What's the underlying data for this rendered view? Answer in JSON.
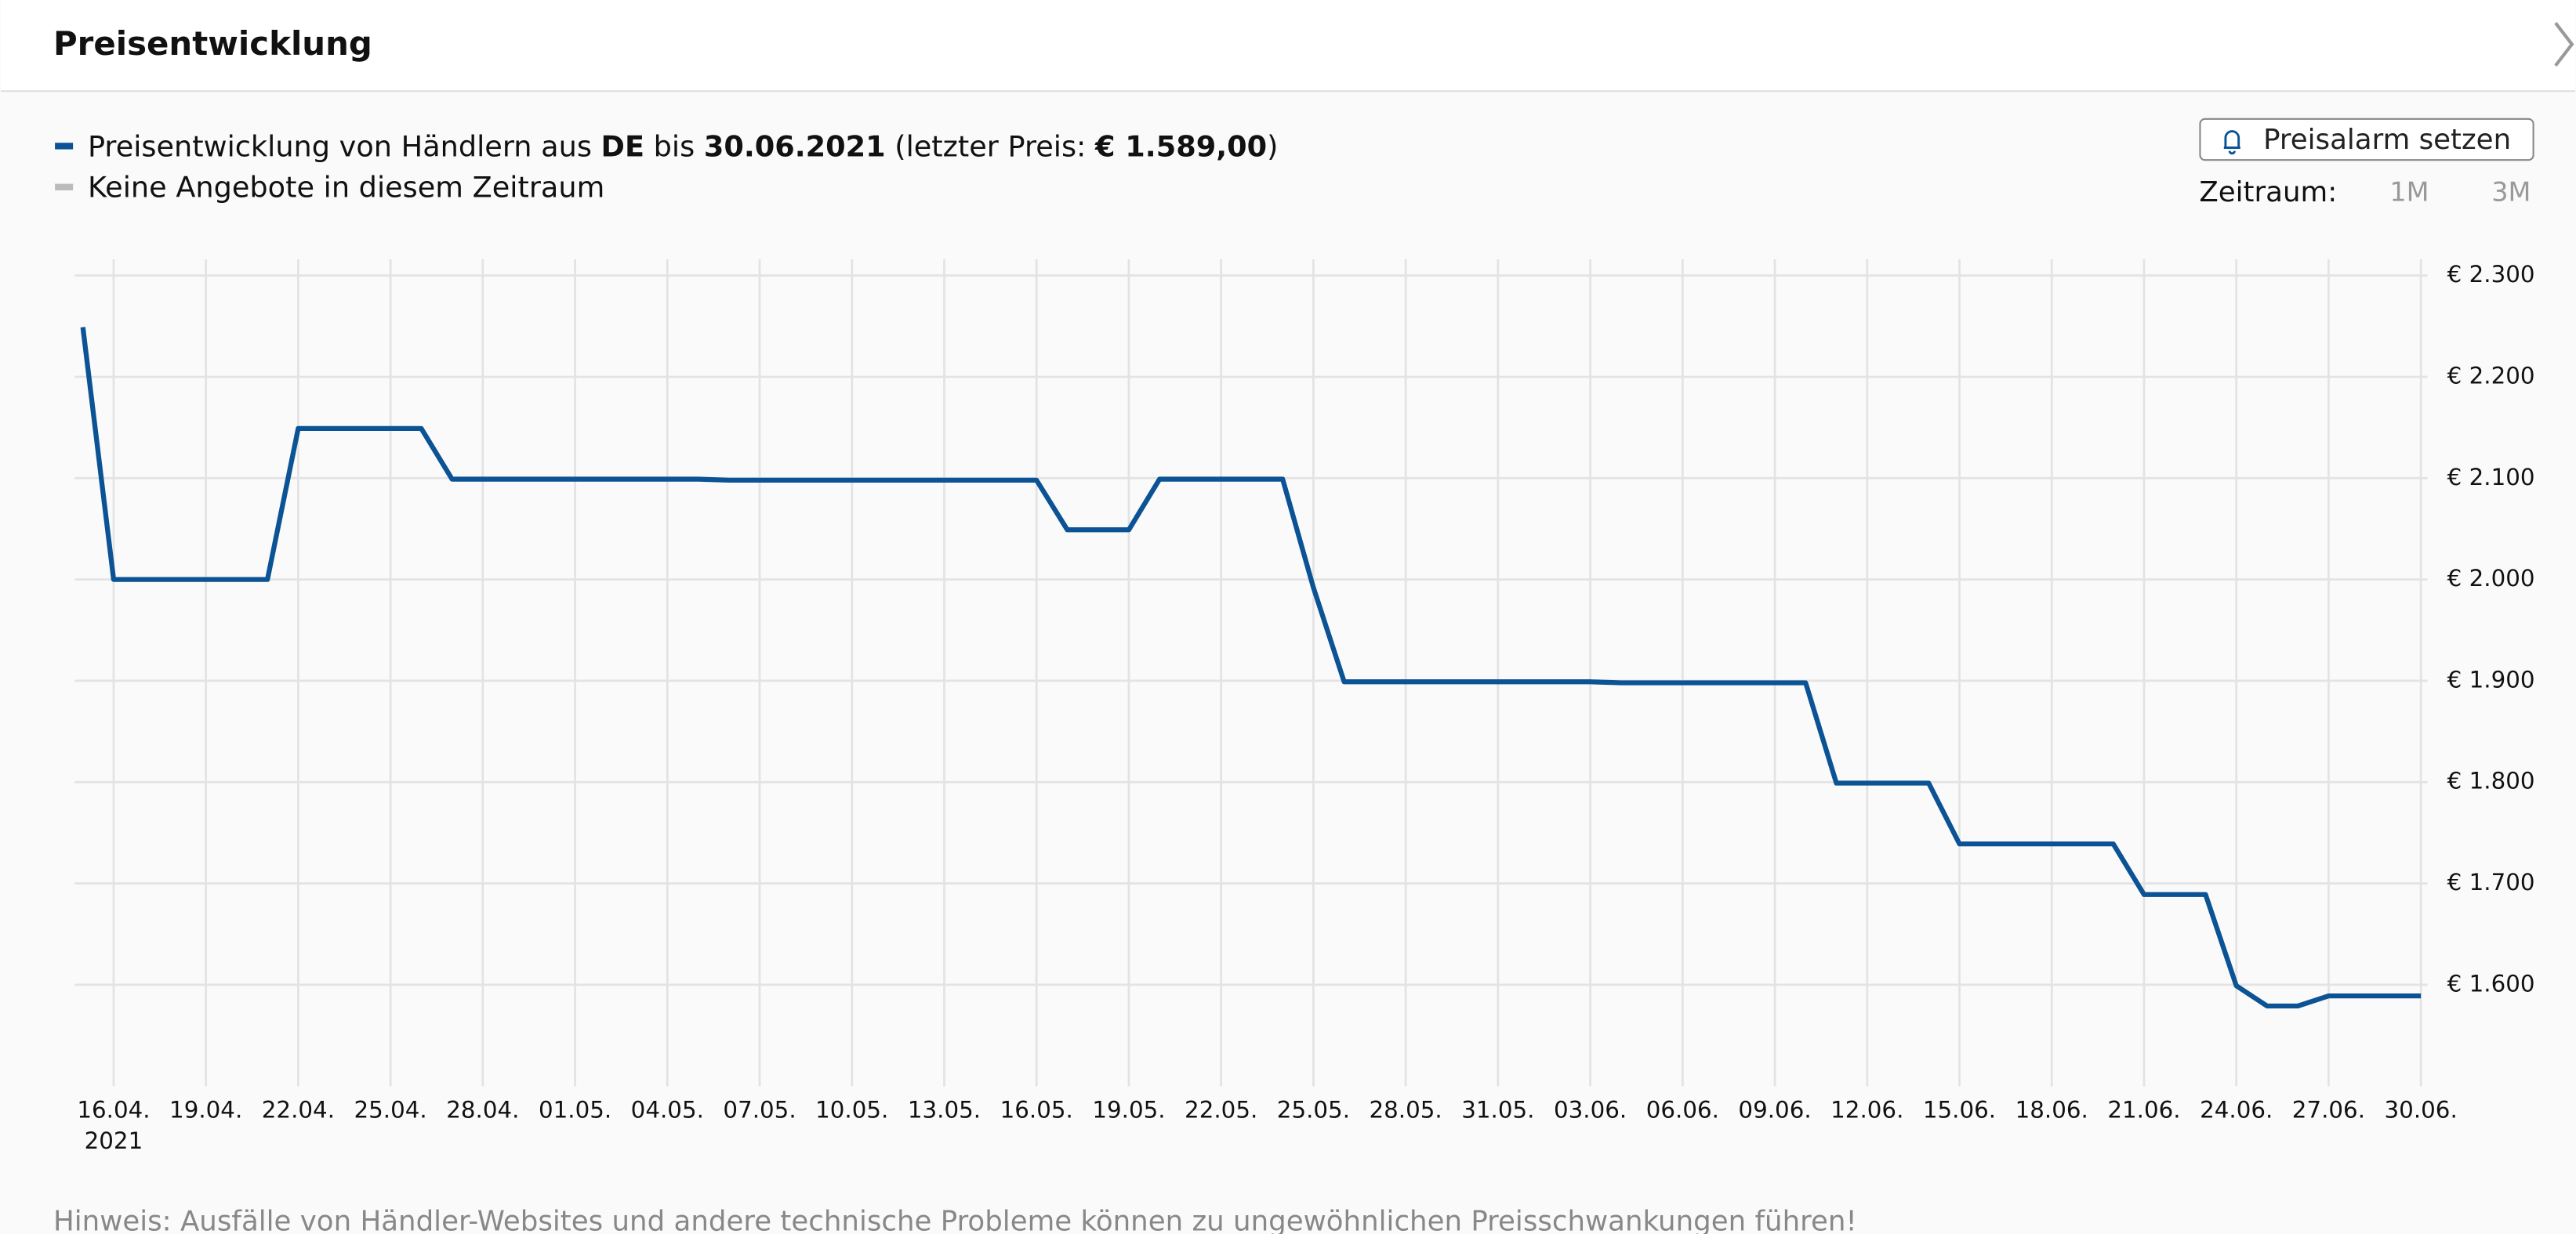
{
  "header": {
    "title": "Preisentwicklung"
  },
  "controls": {
    "alarm_button": "Preisalarm setzen",
    "period_label": "Zeitraum:",
    "periods": [
      "1M",
      "3M"
    ]
  },
  "chart_data": {
    "type": "line",
    "categories": [
      null,
      "16.04.",
      null,
      null,
      "19.04.",
      null,
      null,
      "22.04.",
      null,
      null,
      "25.04.",
      null,
      null,
      "28.04.",
      null,
      null,
      "01.05.",
      null,
      null,
      "04.05.",
      null,
      null,
      "07.05.",
      null,
      null,
      "10.05.",
      null,
      null,
      "13.05.",
      null,
      null,
      "16.05.",
      null,
      null,
      "19.05.",
      null,
      null,
      "22.05.",
      null,
      null,
      "25.05.",
      null,
      null,
      "28.05.",
      null,
      null,
      "31.05.",
      null,
      null,
      "03.06.",
      null,
      null,
      "06.06.",
      null,
      null,
      "09.06.",
      null,
      null,
      "12.06.",
      null,
      null,
      "15.06.",
      null,
      null,
      "18.06.",
      null,
      null,
      "21.06.",
      null,
      null,
      "24.06.",
      null,
      null,
      "27.06.",
      null,
      null,
      "30.06."
    ],
    "x_year_label": "2021",
    "series": [
      {
        "name_parts": [
          "Preisentwicklung von Händlern aus ",
          "DE",
          " bis ",
          "30.06.2021",
          " (letzter Preis: ",
          "€ 1.589,00",
          ")"
        ],
        "color": "#0b5394",
        "values": [
          2249,
          2000,
          2000,
          2000,
          2000,
          2000,
          2000,
          2149,
          2149,
          2149,
          2149,
          2149,
          2099,
          2099,
          2099,
          2099,
          2099,
          2099,
          2099,
          2099,
          2099,
          2098,
          2098,
          2098,
          2098,
          2098,
          2098,
          2098,
          2098,
          2098,
          2098,
          2098,
          2049,
          2049,
          2049,
          2099,
          2099,
          2099,
          2099,
          2099,
          1992,
          1899,
          1899,
          1899,
          1899,
          1899,
          1899,
          1899,
          1899,
          1899,
          1898,
          1898,
          1898,
          1898,
          1898,
          1898,
          1898,
          1799,
          1799,
          1799,
          1799,
          1739,
          1739,
          1739,
          1739,
          1739,
          1739,
          1689,
          1689,
          1689,
          1599,
          1579,
          1579,
          1589,
          1589,
          1589,
          1589
        ]
      }
    ],
    "gap_legend": {
      "name": "Keine Angebote in diesem Zeitraum",
      "color": "#bbbbbb"
    },
    "ylim": [
      1503,
      2316
    ],
    "yticks": [
      {
        "value": 1600,
        "label": "€ 1.600"
      },
      {
        "value": 1700,
        "label": "€ 1.700"
      },
      {
        "value": 1800,
        "label": "€ 1.800"
      },
      {
        "value": 1900,
        "label": "€ 1.900"
      },
      {
        "value": 2000,
        "label": "€ 2.000"
      },
      {
        "value": 2100,
        "label": "€ 2.100"
      },
      {
        "value": 2200,
        "label": "€ 2.200"
      },
      {
        "value": 2300,
        "label": "€ 2.300"
      }
    ],
    "grid": true
  },
  "footer": {
    "note": "Hinweis: Ausfälle von Händler-Websites und andere technische Probleme können zu ungewöhnlichen Preisschwankungen führen!"
  }
}
